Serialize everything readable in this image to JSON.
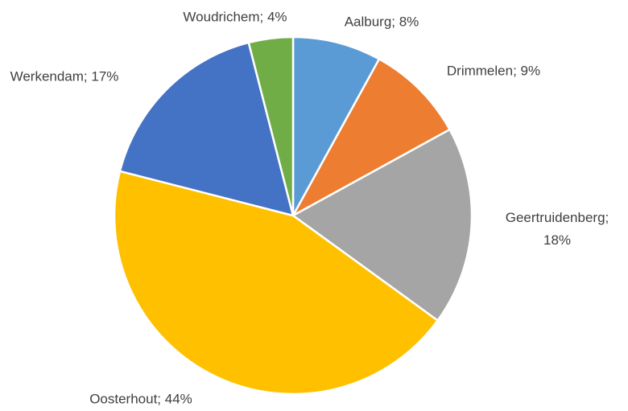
{
  "chart_data": {
    "type": "pie",
    "values": [
      8,
      9,
      18,
      44,
      17,
      4
    ],
    "value_labels": [
      "Aalburg; 8%",
      "Drimmelen; 9%",
      "Geertruidenberg; 18%",
      "Oosterhout; 44%",
      "Werkendam; 17%",
      "Woudrichem; 4%"
    ],
    "colors": [
      "#5b9bd5",
      "#ed7d31",
      "#a5a5a5",
      "#ffc000",
      "#4472c4",
      "#70ad47"
    ]
  }
}
